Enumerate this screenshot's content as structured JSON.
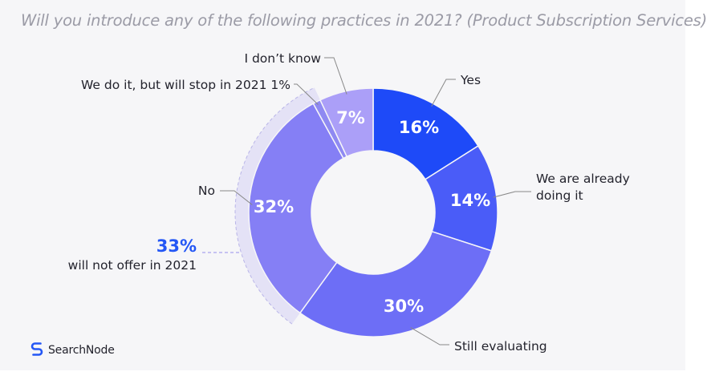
{
  "title": "Will you introduce any of the following practices in 2021? (Product Subscription Services)",
  "brand": {
    "name": "SearchNode",
    "icon": "searchnode-logo-icon",
    "color": "#2457f5"
  },
  "colors": {
    "background": "#f6f6f8",
    "summary_accent": "#2457f5",
    "summary_band": "#e4e2f6",
    "leader_line": "#888888"
  },
  "chart_data": {
    "type": "pie",
    "variant": "donut",
    "slices": [
      {
        "label": "Yes",
        "value": 16,
        "value_label": "16%",
        "color": "#1e4af8"
      },
      {
        "label": "We are already doing it",
        "value": 14,
        "value_label": "14%",
        "color": "#4a5cf8"
      },
      {
        "label": "Still evaluating",
        "value": 30,
        "value_label": "30%",
        "color": "#6d6ef6"
      },
      {
        "label": "No",
        "value": 32,
        "value_label": "32%",
        "color": "#857ff5"
      },
      {
        "label": "We do it, but will stop in 2021 1%",
        "value": 1,
        "value_label": "",
        "color": "#8f8af2"
      },
      {
        "label": "I don’t know",
        "value": 7,
        "value_label": "7%",
        "color": "#ab9ff8"
      }
    ],
    "summary": {
      "value_label": "33%",
      "text": "will not offer in 2021"
    }
  }
}
